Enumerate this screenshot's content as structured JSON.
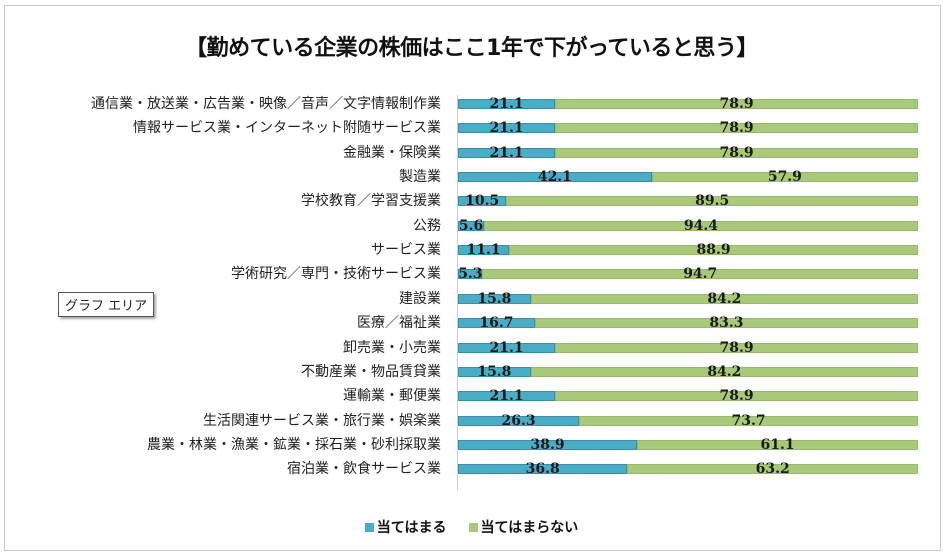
{
  "chart_data": {
    "type": "bar",
    "orientation": "horizontal",
    "stacked": "100%",
    "title": "【勤めている企業の株価はここ1年で下がっていると思う】",
    "xlabel": "",
    "ylabel": "",
    "xlim": [
      0,
      100
    ],
    "grid": false,
    "legend_position": "bottom",
    "categories": [
      "通信業・放送業・広告業・映像／音声／文字情報制作業",
      "情報サービス業・インターネット附随サービス業",
      "金融業・保険業",
      "製造業",
      "学校教育／学習支援業",
      "公務",
      "サービス業",
      "学術研究／専門・技術サービス業",
      "建設業",
      "医療／福祉業",
      "卸売業・小売業",
      "不動産業・物品賃貸業",
      "運輸業・郵便業",
      "生活関連サービス業・旅行業・娯楽業",
      "農業・林業・漁業・鉱業・採石業・砂利採取業",
      "宿泊業・飲食サービス業"
    ],
    "series": [
      {
        "name": "当てはまる",
        "color": "#4bacc6",
        "values": [
          21.1,
          21.1,
          21.1,
          42.1,
          10.5,
          5.6,
          11.1,
          5.3,
          15.8,
          16.7,
          21.1,
          15.8,
          21.1,
          26.3,
          38.9,
          36.8
        ]
      },
      {
        "name": "当てはまらない",
        "color": "#a8c97a",
        "values": [
          78.9,
          78.9,
          78.9,
          57.9,
          89.5,
          94.4,
          88.9,
          94.7,
          84.2,
          83.3,
          78.9,
          84.2,
          78.9,
          73.7,
          61.1,
          63.2
        ]
      }
    ]
  },
  "ui": {
    "tooltip": "グラフ エリア"
  }
}
